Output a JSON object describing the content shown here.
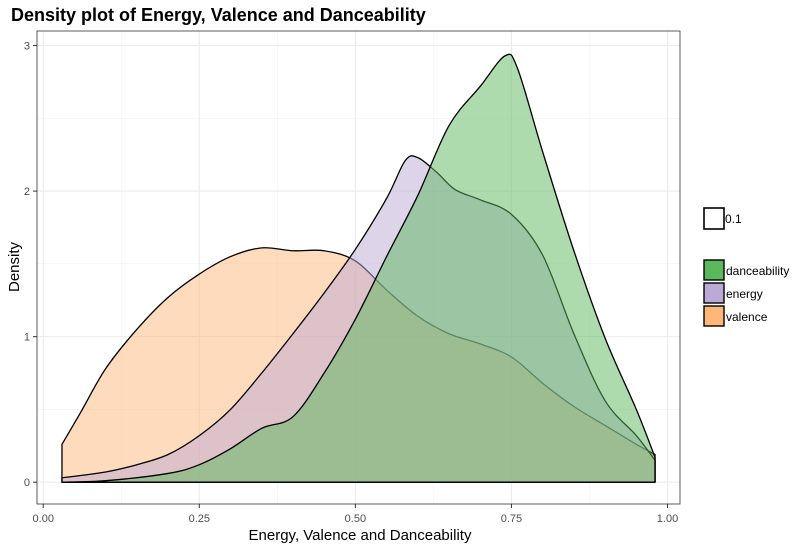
{
  "chart_data": {
    "type": "area",
    "title": "Density plot of Energy, Valence and Danceability",
    "xlabel": "Energy, Valence and Danceability",
    "ylabel": "Density",
    "xlim": [
      -0.01,
      1.02
    ],
    "ylim": [
      -0.15,
      3.1
    ],
    "x_ticks": [
      0.0,
      0.25,
      0.5,
      0.75,
      1.0
    ],
    "x_tick_labels": [
      "0.00",
      "0.25",
      "0.50",
      "0.75",
      "1.00"
    ],
    "y_ticks": [
      0,
      1,
      2,
      3
    ],
    "y_tick_labels": [
      "0",
      "1",
      "2",
      "3"
    ],
    "grid": true,
    "legend_position": "right",
    "series": [
      {
        "name": "valence",
        "color": "#FDB77A",
        "points": [
          [
            0.03,
            0.26
          ],
          [
            0.06,
            0.48
          ],
          [
            0.1,
            0.78
          ],
          [
            0.15,
            1.05
          ],
          [
            0.2,
            1.27
          ],
          [
            0.25,
            1.43
          ],
          [
            0.3,
            1.55
          ],
          [
            0.35,
            1.61
          ],
          [
            0.4,
            1.59
          ],
          [
            0.45,
            1.59
          ],
          [
            0.5,
            1.52
          ],
          [
            0.55,
            1.32
          ],
          [
            0.6,
            1.14
          ],
          [
            0.65,
            1.02
          ],
          [
            0.7,
            0.95
          ],
          [
            0.75,
            0.86
          ],
          [
            0.8,
            0.68
          ],
          [
            0.85,
            0.52
          ],
          [
            0.9,
            0.39
          ],
          [
            0.95,
            0.26
          ],
          [
            0.98,
            0.19
          ]
        ]
      },
      {
        "name": "energy",
        "color": "#BCAAD6",
        "points": [
          [
            0.03,
            0.03
          ],
          [
            0.1,
            0.07
          ],
          [
            0.15,
            0.12
          ],
          [
            0.2,
            0.19
          ],
          [
            0.25,
            0.32
          ],
          [
            0.3,
            0.5
          ],
          [
            0.35,
            0.75
          ],
          [
            0.4,
            1.02
          ],
          [
            0.45,
            1.3
          ],
          [
            0.5,
            1.6
          ],
          [
            0.55,
            1.95
          ],
          [
            0.58,
            2.21
          ],
          [
            0.6,
            2.23
          ],
          [
            0.63,
            2.13
          ],
          [
            0.66,
            2.01
          ],
          [
            0.7,
            1.94
          ],
          [
            0.75,
            1.84
          ],
          [
            0.8,
            1.56
          ],
          [
            0.85,
            1.02
          ],
          [
            0.9,
            0.56
          ],
          [
            0.95,
            0.32
          ],
          [
            0.98,
            0.15
          ]
        ]
      },
      {
        "name": "danceability",
        "color": "#5CB85C",
        "points": [
          [
            0.03,
            0.0
          ],
          [
            0.1,
            0.01
          ],
          [
            0.2,
            0.06
          ],
          [
            0.25,
            0.12
          ],
          [
            0.3,
            0.23
          ],
          [
            0.35,
            0.37
          ],
          [
            0.4,
            0.45
          ],
          [
            0.45,
            0.75
          ],
          [
            0.5,
            1.12
          ],
          [
            0.55,
            1.55
          ],
          [
            0.6,
            1.97
          ],
          [
            0.65,
            2.45
          ],
          [
            0.7,
            2.72
          ],
          [
            0.74,
            2.93
          ],
          [
            0.76,
            2.84
          ],
          [
            0.8,
            2.27
          ],
          [
            0.85,
            1.59
          ],
          [
            0.9,
            0.99
          ],
          [
            0.95,
            0.5
          ],
          [
            0.98,
            0.17
          ]
        ]
      }
    ],
    "legend": {
      "size_key": "0.1",
      "fill_items": [
        "danceability",
        "energy",
        "valence"
      ]
    }
  }
}
